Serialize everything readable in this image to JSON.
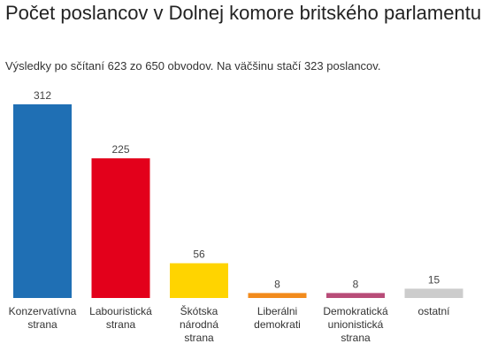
{
  "title": "Počet poslancov v Dolnej komore britského parlamentu",
  "subtitle": "Výsledky po sčítaní 623 zo 650 obvodov. Na väčšinu stačí 323 poslancov.",
  "chart_data": {
    "type": "bar",
    "title": "Počet poslancov v Dolnej komore britského parlamentu",
    "subtitle": "Výsledky po sčítaní 623 zo 650 obvodov. Na väčšinu stačí 323 poslancov.",
    "categories": [
      [
        "Konzervatívna",
        "strana"
      ],
      [
        "Labouristická",
        "strana"
      ],
      [
        "Škótska",
        "národná",
        "strana"
      ],
      [
        "Liberálni",
        "demokrati"
      ],
      [
        "Demokratická",
        "unionistická",
        "strana"
      ],
      [
        "ostatní"
      ]
    ],
    "values": [
      312,
      225,
      56,
      8,
      8,
      15
    ],
    "colors": [
      "#1f6fb4",
      "#e3001b",
      "#ffd400",
      "#f28b1c",
      "#b84c78",
      "#cccccc"
    ],
    "ylim": [
      0,
      312
    ],
    "grid": false,
    "legend": "none"
  }
}
